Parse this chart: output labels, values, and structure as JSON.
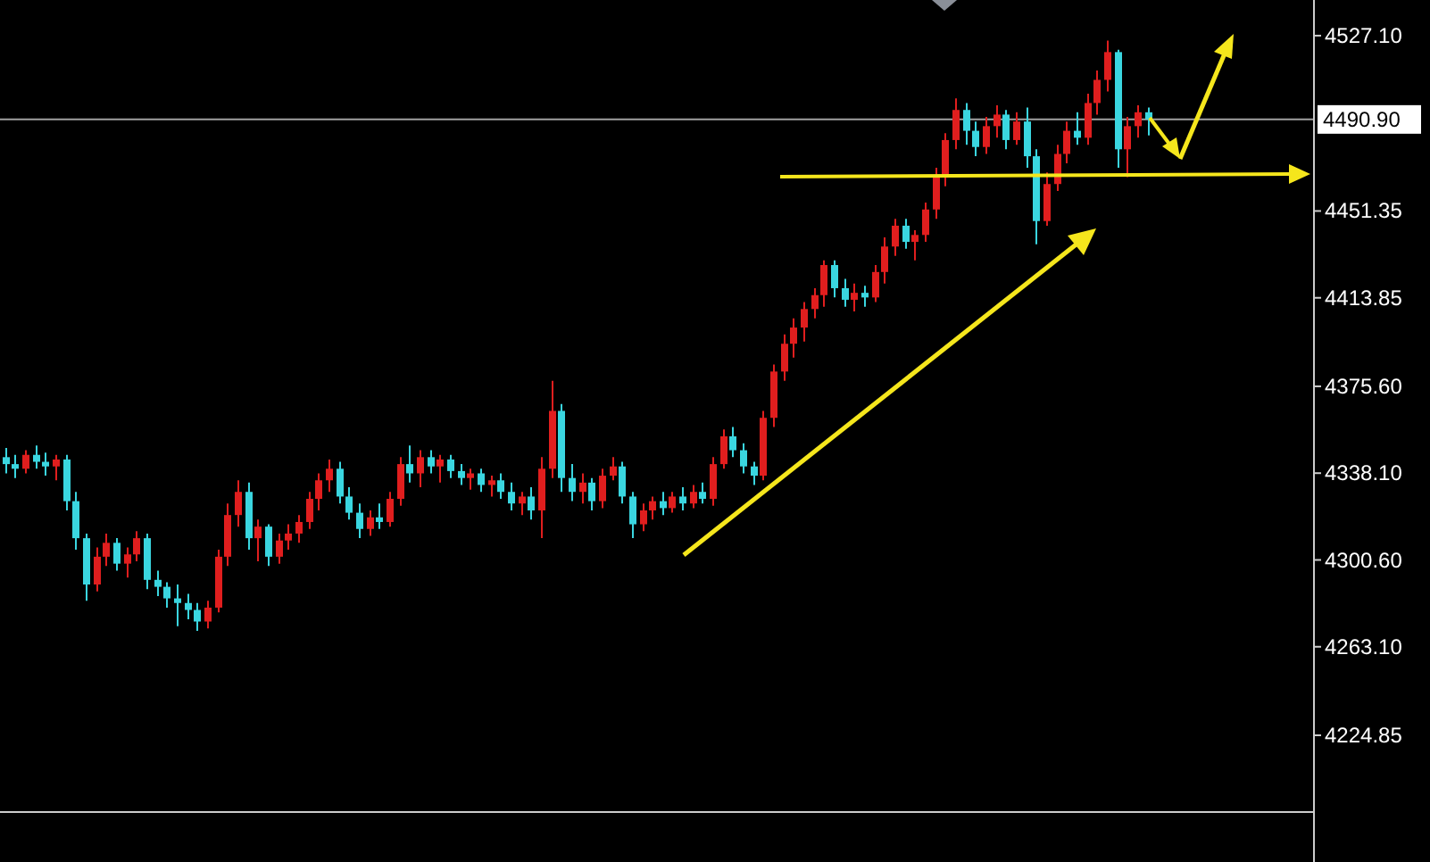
{
  "chart_data": {
    "type": "candlestick",
    "categories": [
      null,
      null,
      null,
      null,
      null,
      null,
      null,
      null,
      null,
      null,
      null,
      null,
      null,
      null,
      null,
      null,
      null,
      null,
      null,
      null,
      null,
      null,
      null,
      null,
      null,
      null,
      null,
      null,
      null,
      null,
      null,
      null,
      null,
      null,
      null,
      null,
      null,
      null,
      null,
      null,
      null,
      null,
      null,
      null,
      null,
      null,
      null,
      null,
      null,
      null,
      null,
      null,
      null,
      null,
      null,
      null,
      null,
      null,
      null,
      null,
      null,
      null,
      null,
      null,
      null,
      null,
      null,
      null,
      null,
      null,
      null,
      null,
      null,
      null,
      null,
      null,
      null,
      null,
      null,
      null,
      null,
      null,
      null,
      null,
      null,
      null,
      null,
      null,
      null,
      null,
      null,
      null,
      null,
      null,
      null,
      null,
      null,
      null,
      null,
      null,
      null,
      null,
      null,
      null,
      null,
      null,
      null,
      null,
      null,
      null,
      null,
      null,
      null,
      null,
      null,
      null,
      null,
      null,
      null,
      null,
      null,
      null,
      null,
      null,
      null,
      null,
      null,
      null,
      null,
      null
    ],
    "ohlc": [
      [
        4345,
        4349,
        4338,
        4342
      ],
      [
        4342,
        4346,
        4336,
        4340
      ],
      [
        4340,
        4348,
        4338,
        4346
      ],
      [
        4346,
        4350,
        4340,
        4343
      ],
      [
        4343,
        4347,
        4337,
        4341
      ],
      [
        4341,
        4346,
        4335,
        4344
      ],
      [
        4344,
        4346,
        4322,
        4326
      ],
      [
        4326,
        4330,
        4305,
        4310
      ],
      [
        4310,
        4312,
        4283,
        4290
      ],
      [
        4290,
        4306,
        4287,
        4302
      ],
      [
        4302,
        4312,
        4298,
        4308
      ],
      [
        4308,
        4310,
        4296,
        4299
      ],
      [
        4299,
        4306,
        4293,
        4303
      ],
      [
        4303,
        4313,
        4300,
        4310
      ],
      [
        4310,
        4312,
        4288,
        4292
      ],
      [
        4292,
        4296,
        4285,
        4289
      ],
      [
        4289,
        4291,
        4280,
        4284
      ],
      [
        4284,
        4290,
        4272,
        4282
      ],
      [
        4282,
        4286,
        4275,
        4279
      ],
      [
        4279,
        4282,
        4270,
        4274
      ],
      [
        4274,
        4283,
        4271,
        4280
      ],
      [
        4280,
        4305,
        4278,
        4302
      ],
      [
        4302,
        4325,
        4298,
        4320
      ],
      [
        4320,
        4335,
        4315,
        4330
      ],
      [
        4330,
        4334,
        4305,
        4310
      ],
      [
        4310,
        4318,
        4300,
        4315
      ],
      [
        4315,
        4316,
        4298,
        4302
      ],
      [
        4302,
        4312,
        4299,
        4309
      ],
      [
        4309,
        4316,
        4305,
        4312
      ],
      [
        4312,
        4320,
        4308,
        4317
      ],
      [
        4317,
        4330,
        4314,
        4327
      ],
      [
        4327,
        4338,
        4322,
        4335
      ],
      [
        4335,
        4344,
        4330,
        4340
      ],
      [
        4340,
        4343,
        4325,
        4328
      ],
      [
        4328,
        4332,
        4318,
        4321
      ],
      [
        4321,
        4325,
        4310,
        4314
      ],
      [
        4314,
        4322,
        4311,
        4319
      ],
      [
        4319,
        4325,
        4314,
        4317
      ],
      [
        4317,
        4330,
        4315,
        4327
      ],
      [
        4327,
        4345,
        4324,
        4342
      ],
      [
        4342,
        4350,
        4334,
        4338
      ],
      [
        4338,
        4348,
        4332,
        4345
      ],
      [
        4345,
        4348,
        4338,
        4341
      ],
      [
        4341,
        4346,
        4334,
        4344
      ],
      [
        4344,
        4346,
        4336,
        4339
      ],
      [
        4339,
        4342,
        4333,
        4336
      ],
      [
        4336,
        4340,
        4331,
        4338
      ],
      [
        4338,
        4340,
        4330,
        4333
      ],
      [
        4333,
        4337,
        4328,
        4335
      ],
      [
        4335,
        4338,
        4327,
        4330
      ],
      [
        4330,
        4334,
        4322,
        4325
      ],
      [
        4325,
        4330,
        4320,
        4328
      ],
      [
        4328,
        4332,
        4318,
        4322
      ],
      [
        4322,
        4345,
        4310,
        4340
      ],
      [
        4340,
        4378,
        4336,
        4365
      ],
      [
        4365,
        4368,
        4330,
        4336
      ],
      [
        4336,
        4342,
        4326,
        4330
      ],
      [
        4330,
        4338,
        4325,
        4334
      ],
      [
        4334,
        4336,
        4322,
        4326
      ],
      [
        4326,
        4340,
        4323,
        4337
      ],
      [
        4337,
        4345,
        4335,
        4341
      ],
      [
        4341,
        4343,
        4325,
        4328
      ],
      [
        4328,
        4330,
        4310,
        4316
      ],
      [
        4316,
        4325,
        4313,
        4322
      ],
      [
        4322,
        4328,
        4318,
        4326
      ],
      [
        4326,
        4330,
        4320,
        4323
      ],
      [
        4323,
        4330,
        4321,
        4328
      ],
      [
        4328,
        4332,
        4322,
        4325
      ],
      [
        4325,
        4333,
        4323,
        4330
      ],
      [
        4330,
        4334,
        4325,
        4327
      ],
      [
        4327,
        4345,
        4324,
        4342
      ],
      [
        4342,
        4357,
        4340,
        4354
      ],
      [
        4354,
        4358,
        4345,
        4348
      ],
      [
        4348,
        4351,
        4338,
        4341
      ],
      [
        4341,
        4343,
        4333,
        4337
      ],
      [
        4337,
        4365,
        4335,
        4362
      ],
      [
        4362,
        4385,
        4358,
        4382
      ],
      [
        4382,
        4398,
        4378,
        4394
      ],
      [
        4394,
        4405,
        4388,
        4401
      ],
      [
        4401,
        4412,
        4395,
        4409
      ],
      [
        4409,
        4418,
        4405,
        4415
      ],
      [
        4415,
        4430,
        4410,
        4428
      ],
      [
        4428,
        4430,
        4414,
        4418
      ],
      [
        4418,
        4422,
        4410,
        4413
      ],
      [
        4413,
        4420,
        4408,
        4416
      ],
      [
        4416,
        4419,
        4410,
        4414
      ],
      [
        4414,
        4428,
        4412,
        4425
      ],
      [
        4425,
        4440,
        4420,
        4436
      ],
      [
        4436,
        4448,
        4432,
        4445
      ],
      [
        4445,
        4448,
        4435,
        4438
      ],
      [
        4438,
        4443,
        4430,
        4441
      ],
      [
        4441,
        4455,
        4438,
        4452
      ],
      [
        4452,
        4470,
        4448,
        4466
      ],
      [
        4466,
        4485,
        4462,
        4482
      ],
      [
        4482,
        4500,
        4478,
        4495
      ],
      [
        4495,
        4498,
        4480,
        4486
      ],
      [
        4486,
        4490,
        4475,
        4479
      ],
      [
        4479,
        4492,
        4476,
        4488
      ],
      [
        4488,
        4497,
        4483,
        4493
      ],
      [
        4493,
        4495,
        4478,
        4482
      ],
      [
        4482,
        4494,
        4480,
        4490
      ],
      [
        4490,
        4496,
        4470,
        4475
      ],
      [
        4475,
        4478,
        4437,
        4447
      ],
      [
        4447,
        4468,
        4445,
        4463
      ],
      [
        4463,
        4480,
        4460,
        4476
      ],
      [
        4476,
        4490,
        4472,
        4486
      ],
      [
        4486,
        4494,
        4480,
        4483
      ],
      [
        4483,
        4502,
        4480,
        4498
      ],
      [
        4498,
        4512,
        4493,
        4508
      ],
      [
        4508,
        4525,
        4503,
        4520
      ],
      [
        4520,
        4521,
        4470,
        4478
      ],
      [
        4478,
        4492,
        4466,
        4488
      ],
      [
        4488,
        4497,
        4483,
        4494
      ],
      [
        4494,
        4496,
        4484,
        4490.9
      ],
      null,
      null,
      null,
      null,
      null,
      null,
      null,
      null,
      null,
      null,
      null,
      null,
      null,
      null,
      null,
      null
    ],
    "ylim": [
      4191.7,
      4542.5
    ],
    "yticks": [
      {
        "value": 4527.1,
        "label": "4527.10"
      },
      {
        "value": 4451.35,
        "label": "4451.35"
      },
      {
        "value": 4413.85,
        "label": "4413.85"
      },
      {
        "value": 4375.6,
        "label": "4375.60"
      },
      {
        "value": 4338.1,
        "label": "4338.10"
      },
      {
        "value": 4300.6,
        "label": "4300.60"
      },
      {
        "value": 4263.1,
        "label": "4263.10"
      },
      {
        "value": 4224.85,
        "label": "4224.85"
      }
    ],
    "ref_lines": [
      {
        "axis": "y",
        "value": 4490.9,
        "label": "4490.90",
        "color": "#a0a0a0"
      }
    ],
    "grid": false
  }
}
